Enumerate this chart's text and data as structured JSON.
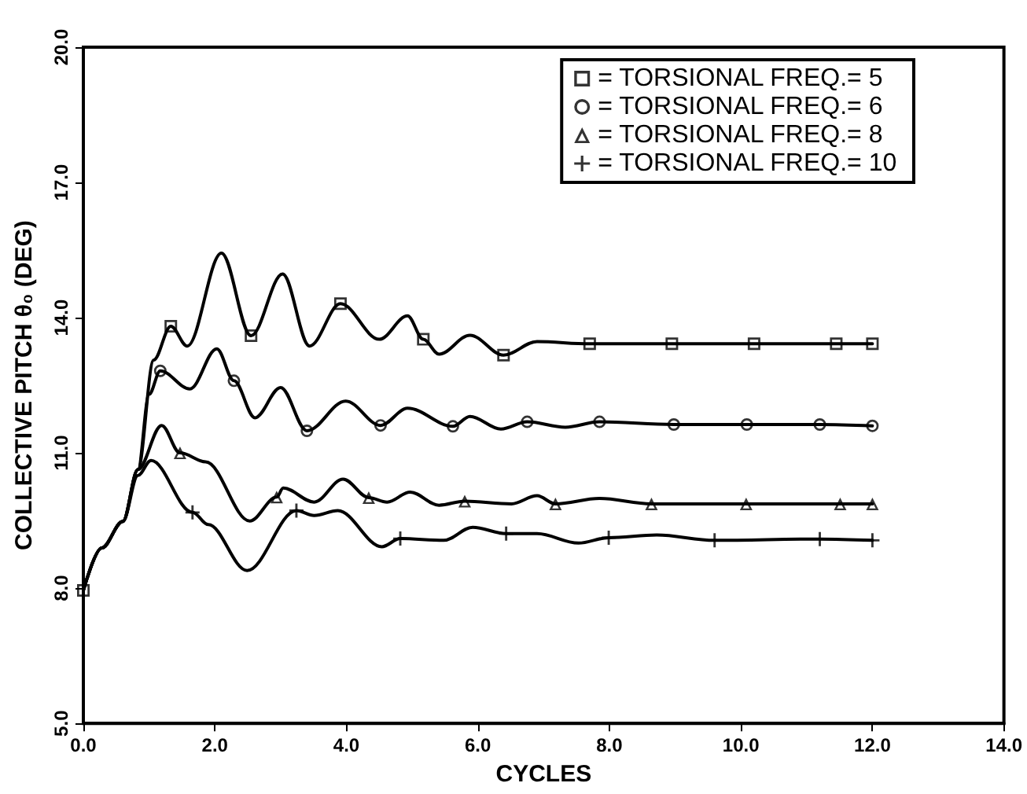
{
  "chart_data": {
    "type": "line",
    "xlabel": "CYCLES",
    "ylabel": "COLLECTIVE PITCH θ₀ (DEG)",
    "xlim": [
      0,
      14
    ],
    "xticks": [
      {
        "value": 0,
        "label": "0.0"
      },
      {
        "value": 2,
        "label": "2.0"
      },
      {
        "value": 4,
        "label": "4.0"
      },
      {
        "value": 6,
        "label": "6.0"
      },
      {
        "value": 8,
        "label": "8.0"
      },
      {
        "value": 10,
        "label": "10.0"
      },
      {
        "value": 12,
        "label": "12.0"
      },
      {
        "value": 14,
        "label": "14.0"
      }
    ],
    "ylim": [
      5,
      20
    ],
    "yticks": [
      {
        "value": 5,
        "label": "5.0"
      },
      {
        "value": 8,
        "label": "8.0"
      },
      {
        "value": 11,
        "label": "11.0"
      },
      {
        "value": 14,
        "label": "14.0"
      },
      {
        "value": 17,
        "label": "17.0"
      },
      {
        "value": 20,
        "label": "20.0"
      }
    ],
    "grid": false,
    "legend": "top right",
    "series": [
      {
        "color": "#000000",
        "marker": "none",
        "x": [
          0,
          0.28,
          0.6,
          0.83,
          1.07,
          1.33,
          1.58,
          2.1,
          2.55,
          3.03,
          3.44,
          3.91,
          4.5,
          4.93,
          5.17,
          5.41,
          5.88,
          6.39,
          6.9,
          7.7,
          8.95,
          10.2,
          11.45,
          12.0
        ],
        "values": [
          7.95,
          8.89,
          9.48,
          10.63,
          13.06,
          13.81,
          13.37,
          15.43,
          13.6,
          14.97,
          13.37,
          14.31,
          13.52,
          14.04,
          13.52,
          13.19,
          13.61,
          13.17,
          13.47,
          13.42,
          13.42,
          13.42,
          13.42,
          13.42
        ]
      },
      {
        "color": "#000000",
        "marker": "none",
        "x": [
          0,
          0.28,
          0.6,
          0.83,
          1.0,
          1.17,
          1.62,
          2.03,
          2.29,
          2.61,
          3.0,
          3.4,
          3.99,
          4.52,
          4.93,
          5.62,
          5.88,
          6.35,
          6.75,
          7.33,
          7.85,
          8.98,
          10.09,
          11.2,
          12.0
        ],
        "values": [
          7.95,
          8.89,
          9.48,
          10.63,
          12.3,
          12.82,
          12.42,
          13.31,
          12.6,
          11.78,
          12.45,
          11.49,
          12.15,
          11.61,
          11.99,
          11.59,
          11.81,
          11.53,
          11.69,
          11.57,
          11.69,
          11.63,
          11.63,
          11.63,
          11.6
        ]
      },
      {
        "color": "#000000",
        "marker": "none",
        "x": [
          0,
          0.28,
          0.6,
          0.83,
          1.19,
          1.47,
          1.86,
          2.53,
          2.94,
          3.04,
          3.51,
          3.95,
          4.34,
          4.62,
          4.97,
          5.41,
          5.8,
          6.51,
          6.9,
          7.18,
          7.85,
          8.64,
          10.08,
          11.51,
          12.0
        ],
        "values": [
          7.95,
          8.89,
          9.48,
          10.63,
          11.61,
          11.0,
          10.8,
          9.49,
          10.02,
          10.22,
          9.91,
          10.42,
          10.01,
          9.91,
          10.13,
          9.84,
          9.93,
          9.87,
          10.05,
          9.87,
          9.99,
          9.87,
          9.87,
          9.87,
          9.87
        ]
      },
      {
        "color": "#000000",
        "marker": "none",
        "x": [
          0,
          0.28,
          0.6,
          0.83,
          1.03,
          1.66,
          1.9,
          2.49,
          3.24,
          3.51,
          3.87,
          4.54,
          4.82,
          5.48,
          5.92,
          6.43,
          6.9,
          7.53,
          7.99,
          8.72,
          9.6,
          11.2,
          12.0
        ],
        "values": [
          7.95,
          8.89,
          9.48,
          10.5,
          10.83,
          9.68,
          9.41,
          8.39,
          9.72,
          9.61,
          9.72,
          8.92,
          9.1,
          9.06,
          9.35,
          9.21,
          9.21,
          9.0,
          9.12,
          9.18,
          9.06,
          9.09,
          9.06
        ]
      },
      {
        "type": "scatter",
        "name": "= TORSIONAL FREQ.= 5",
        "color": "#000000",
        "marker": "square",
        "x": [
          0,
          1.33,
          2.55,
          3.91,
          5.17,
          6.39,
          7.7,
          8.95,
          10.2,
          11.45,
          12.0
        ],
        "values": [
          7.95,
          13.81,
          13.6,
          14.31,
          13.52,
          13.17,
          13.42,
          13.42,
          13.42,
          13.42,
          13.42
        ]
      },
      {
        "type": "scatter",
        "name": "= TORSIONAL FREQ.= 6",
        "color": "#000000",
        "marker": "circle",
        "x": [
          1.17,
          2.29,
          3.4,
          4.52,
          5.62,
          6.75,
          7.85,
          8.98,
          10.09,
          11.2,
          12.0
        ],
        "values": [
          12.82,
          12.6,
          11.49,
          11.61,
          11.59,
          11.69,
          11.69,
          11.63,
          11.63,
          11.63,
          11.6
        ]
      },
      {
        "type": "scatter",
        "name": "= TORSIONAL FREQ.= 8",
        "color": "#000000",
        "marker": "triangle",
        "x": [
          1.47,
          2.94,
          4.34,
          5.8,
          7.18,
          8.64,
          10.08,
          11.51,
          12.0
        ],
        "values": [
          11.0,
          10.02,
          10.01,
          9.93,
          9.87,
          9.87,
          9.87,
          9.87,
          9.87
        ]
      },
      {
        "type": "scatter",
        "name": "= TORSIONAL FREQ.= 10",
        "color": "#000000",
        "marker": "cross",
        "x": [
          1.66,
          3.24,
          4.82,
          6.43,
          7.99,
          9.6,
          11.2,
          12.0
        ],
        "values": [
          9.68,
          9.72,
          9.1,
          9.21,
          9.12,
          9.06,
          9.09,
          9.06
        ]
      }
    ]
  }
}
